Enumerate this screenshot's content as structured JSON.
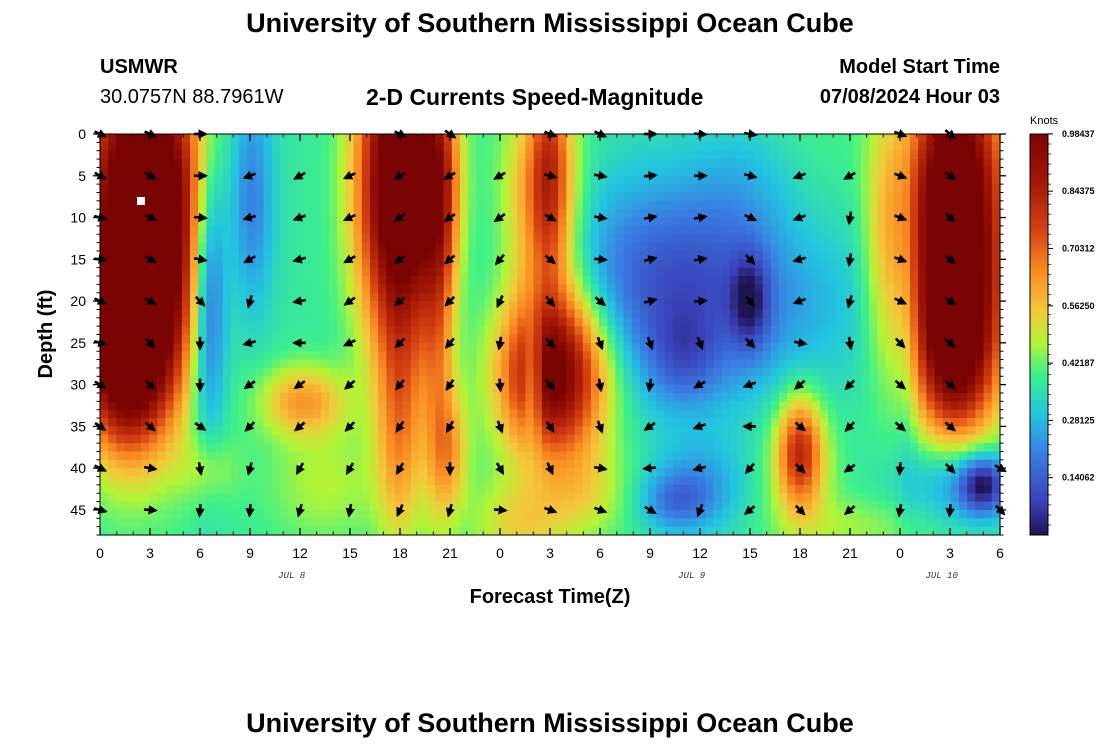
{
  "header": {
    "title": "University of Southern Mississippi Ocean Cube",
    "station": "USMWR",
    "coords": "30.0757N  88.7961W",
    "subtitle": "2-D Currents Speed-Magnitude",
    "model_label": "Model Start Time",
    "model_time": "07/08/2024 Hour 03"
  },
  "footer": {
    "title": "University of Southern Mississippi Ocean Cube"
  },
  "chart_data": {
    "type": "heatmap",
    "title": "2-D Currents Speed-Magnitude",
    "xlabel": "Forecast Time(Z)",
    "ylabel": "Depth (ft)",
    "x_ticks": [
      "0",
      "3",
      "6",
      "9",
      "12",
      "15",
      "18",
      "21",
      "0",
      "3",
      "6",
      "9",
      "12",
      "15",
      "18",
      "21",
      "0",
      "3",
      "6"
    ],
    "x_range": [
      0,
      54
    ],
    "y_ticks": [
      0,
      5,
      10,
      15,
      20,
      25,
      30,
      35,
      40,
      45
    ],
    "y_range": [
      0,
      48
    ],
    "date_labels": [
      {
        "text": "JUL 8",
        "hour": 11.5
      },
      {
        "text": "JUL 9",
        "hour": 35.5
      },
      {
        "text": "JUL 10",
        "hour": 50.5
      }
    ],
    "colorbar": {
      "label": "Knots",
      "range": [
        0,
        0.984
      ],
      "ticks": [
        "0.98437",
        "0.84375",
        "0.70312",
        "0.56250",
        "0.42187",
        "0.28125",
        "0.14062"
      ],
      "tick_values": [
        0.98437,
        0.84375,
        0.70312,
        0.5625,
        0.42187,
        0.28125,
        0.14062
      ]
    },
    "speed_blobs": [
      {
        "h": 2.7,
        "d": 10,
        "sh": 2.4,
        "sd": 14,
        "a": 0.95
      },
      {
        "h": 1.5,
        "d": 26,
        "sh": 1.8,
        "sd": 8,
        "a": 0.6
      },
      {
        "h": 6.5,
        "d": 18,
        "sh": 0.8,
        "sd": 12,
        "a": -0.35
      },
      {
        "h": 9.0,
        "d": 8,
        "sh": 1.0,
        "sd": 10,
        "a": -0.2
      },
      {
        "h": 12.2,
        "d": 32,
        "sh": 1.8,
        "sd": 3,
        "a": 0.25
      },
      {
        "h": 18.0,
        "d": 6,
        "sh": 1.7,
        "sd": 13,
        "a": 0.85
      },
      {
        "h": 18.0,
        "d": 35,
        "sh": 1.0,
        "sd": 10,
        "a": 0.25
      },
      {
        "h": 20.3,
        "d": 25,
        "sh": 0.7,
        "sd": 15,
        "a": 0.2
      },
      {
        "h": 21.0,
        "d": 38,
        "sh": 0.8,
        "sd": 5,
        "a": 0.2
      },
      {
        "h": 20.5,
        "d": 6,
        "sh": 0.8,
        "sd": 8,
        "a": 0.25
      },
      {
        "h": 27.0,
        "d": 4,
        "sh": 0.8,
        "sd": 10,
        "a": 0.25
      },
      {
        "h": 26.0,
        "d": 29,
        "sh": 0.4,
        "sd": 5,
        "a": -0.25
      },
      {
        "h": 27.2,
        "d": 28.5,
        "sh": 2.2,
        "sd": 7,
        "a": 0.7
      },
      {
        "h": 26.5,
        "d": 8,
        "sh": 1.6,
        "sd": 9,
        "a": 0.3
      },
      {
        "h": 25.0,
        "d": 47,
        "sh": 2.0,
        "sd": 4,
        "a": 0.15
      },
      {
        "h": 36.0,
        "d": 18,
        "sh": 6.0,
        "sd": 9,
        "a": -0.3
      },
      {
        "h": 39.0,
        "d": 5,
        "sh": 2.5,
        "sd": 6,
        "a": -0.1
      },
      {
        "h": 39.0,
        "d": 20,
        "sh": 0.8,
        "sd": 4,
        "a": -0.2
      },
      {
        "h": 35.0,
        "d": 27,
        "sh": 1.5,
        "sd": 4,
        "a": -0.12
      },
      {
        "h": 36.0,
        "d": 42,
        "sh": 2.0,
        "sd": 4,
        "a": -0.12
      },
      {
        "h": 34.5,
        "d": 44,
        "sh": 1.5,
        "sd": 2.5,
        "a": -0.15
      },
      {
        "h": 48.0,
        "d": 26,
        "sh": 1.2,
        "sd": 8,
        "a": -0.05
      },
      {
        "h": 42.0,
        "d": 38,
        "sh": 0.9,
        "sd": 4.5,
        "a": 0.35
      },
      {
        "h": 42.0,
        "d": 40,
        "sh": 1.6,
        "sd": 6,
        "a": 0.12
      },
      {
        "h": 40.5,
        "d": 9,
        "sh": 3.5,
        "sd": 10,
        "a": 0.1
      },
      {
        "h": 47.0,
        "d": 14,
        "sh": 0.9,
        "sd": 12,
        "a": 0.15
      },
      {
        "h": 51.3,
        "d": 11,
        "sh": 2.0,
        "sd": 14,
        "a": 0.9
      },
      {
        "h": 51.3,
        "d": 26,
        "sh": 1.7,
        "sd": 7,
        "a": 0.35
      },
      {
        "h": 53.0,
        "d": 42,
        "sh": 1.0,
        "sd": 2.5,
        "a": -0.35
      },
      {
        "h": 51.0,
        "d": 42,
        "sh": 2.5,
        "sd": 4,
        "a": -0.1
      },
      {
        "h": 48.5,
        "d": 20,
        "sh": 0.4,
        "sd": 18,
        "a": -0.05
      },
      {
        "h": 51.0,
        "d": 41,
        "sh": 1.5,
        "sd": 4,
        "a": -0.08
      },
      {
        "h": 13.5,
        "d": 42,
        "sh": 2.5,
        "sd": 5,
        "a": 0.1
      },
      {
        "h": 6.5,
        "d": 40,
        "sh": 1.2,
        "sd": 3,
        "a": 0.1
      },
      {
        "h": 29.0,
        "d": 43,
        "sh": 2.0,
        "sd": 4,
        "a": 0.12
      },
      {
        "h": 45.5,
        "d": 47,
        "sh": 3.0,
        "sd": 2.5,
        "a": 0.08
      }
    ],
    "arrow_columns": [
      0,
      3,
      6,
      9,
      12,
      15,
      18,
      21,
      24,
      27,
      30,
      33,
      36,
      39,
      42,
      45,
      48,
      51,
      54
    ],
    "arrow_depths": [
      0,
      5,
      10,
      15,
      20,
      25,
      30,
      35,
      40,
      45
    ],
    "arrow_angles": [
      [
        -25,
        -30,
        -15,
        -5,
        -25,
        -15,
        -30,
        -35,
        -25,
        -15
      ],
      [
        -25,
        -30,
        -25,
        -30,
        -30,
        -50,
        -45,
        -40,
        -10,
        -5
      ],
      [
        0,
        0,
        -5,
        -10,
        -45,
        -90,
        -90,
        -35,
        -80,
        -95
      ],
      [
        null,
        -160,
        -165,
        -150,
        -105,
        -165,
        -145,
        -135,
        -105,
        -95
      ],
      [
        null,
        -150,
        -160,
        -165,
        -170,
        -180,
        -145,
        -140,
        -120,
        -105
      ],
      [
        null,
        -155,
        -155,
        -150,
        -145,
        -155,
        -140,
        -135,
        -120,
        -100
      ],
      [
        -25,
        -150,
        -145,
        -145,
        -140,
        -135,
        -130,
        -125,
        -120,
        -115
      ],
      [
        -35,
        -150,
        -145,
        -140,
        -135,
        -130,
        -125,
        -120,
        -90,
        -105
      ],
      [
        null,
        -150,
        -145,
        -130,
        -115,
        -100,
        -85,
        -70,
        -60,
        -5
      ],
      [
        -20,
        -15,
        -30,
        -40,
        -50,
        -45,
        -50,
        -55,
        -65,
        -20
      ],
      [
        -25,
        -10,
        -10,
        -5,
        -40,
        -70,
        -80,
        -70,
        -10,
        -20
      ],
      [
        0,
        5,
        10,
        15,
        15,
        -70,
        -100,
        -145,
        -175,
        -30
      ],
      [
        -5,
        0,
        10,
        10,
        5,
        -70,
        -150,
        -160,
        -165,
        -110
      ],
      [
        -10,
        -15,
        -25,
        -45,
        -50,
        -45,
        -160,
        -180,
        -130,
        -140
      ],
      [
        null,
        -160,
        -160,
        -165,
        -160,
        -10,
        -140,
        -40,
        -45,
        -45
      ],
      [
        null,
        -150,
        -100,
        -100,
        -105,
        -80,
        -135,
        -135,
        -145,
        -140
      ],
      [
        -20,
        -20,
        -20,
        -20,
        -25,
        -45,
        -40,
        -40,
        -95,
        -100
      ],
      [
        -40,
        -35,
        -45,
        -40,
        -35,
        -40,
        -40,
        -40,
        -45,
        -95
      ],
      [
        null,
        null,
        null,
        null,
        null,
        null,
        null,
        null,
        -30,
        -45
      ]
    ]
  }
}
